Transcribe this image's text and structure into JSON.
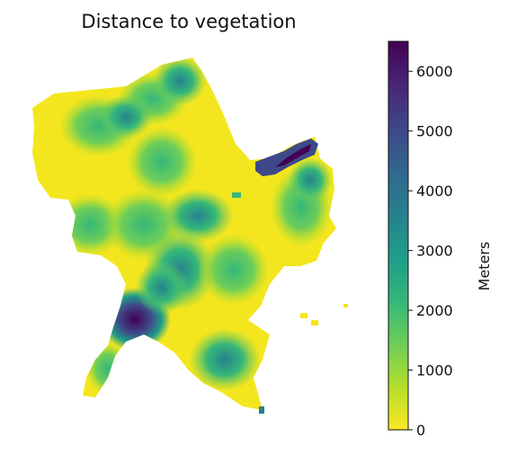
{
  "title": "Distance to vegetation",
  "colorbar": {
    "label": "Meters",
    "min": 0,
    "max": 6500,
    "ticks": [
      "0",
      "1000",
      "2000",
      "3000",
      "4000",
      "5000",
      "6000"
    ],
    "tick_values": [
      0,
      1000,
      2000,
      3000,
      4000,
      5000,
      6000
    ],
    "colormap": "viridis_r",
    "colors": [
      "#fde725",
      "#b5de2b",
      "#6ece58",
      "#35b779",
      "#1f9e89",
      "#26828e",
      "#31688e",
      "#3e4989",
      "#482878",
      "#440154"
    ]
  },
  "map": {
    "region_fill": "#f4e61e"
  }
}
